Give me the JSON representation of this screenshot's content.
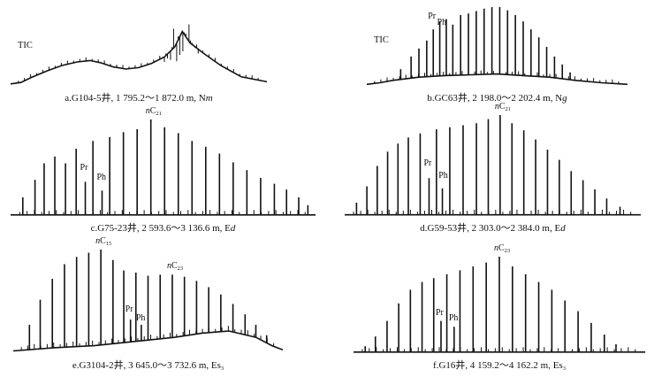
{
  "chart_data": [
    {
      "type": "line",
      "panel_id": "a",
      "tic_label": "TIC",
      "caption": {
        "prefix": "a.G104-5井, 1 795.2～1 872.0 m, N",
        "italic": "m",
        "sub": ""
      },
      "envelope": [
        [
          0,
          0.04
        ],
        [
          0.04,
          0.06
        ],
        [
          0.08,
          0.13
        ],
        [
          0.14,
          0.22
        ],
        [
          0.2,
          0.3
        ],
        [
          0.26,
          0.35
        ],
        [
          0.31,
          0.37
        ],
        [
          0.35,
          0.34
        ],
        [
          0.4,
          0.28
        ],
        [
          0.45,
          0.25
        ],
        [
          0.5,
          0.27
        ],
        [
          0.55,
          0.33
        ],
        [
          0.6,
          0.42
        ],
        [
          0.64,
          0.56
        ],
        [
          0.67,
          0.78
        ],
        [
          0.7,
          0.62
        ],
        [
          0.75,
          0.48
        ],
        [
          0.82,
          0.3
        ],
        [
          0.9,
          0.14
        ],
        [
          1,
          0.07
        ]
      ],
      "peaks": [],
      "noise": [
        0.35,
        0.4,
        0.38,
        0.82,
        0.36,
        0.45,
        0.5,
        0.75,
        0.88,
        0.62,
        0.55,
        0.47
      ],
      "labels": []
    },
    {
      "type": "line",
      "panel_id": "b",
      "tic_label": "TIC",
      "caption": {
        "prefix": "b.GC63井, 2 198.0～2 202.4 m, N",
        "italic": "g",
        "sub": ""
      },
      "envelope": [
        [
          0,
          0.03
        ],
        [
          0.05,
          0.05
        ],
        [
          0.1,
          0.08
        ],
        [
          0.2,
          0.12
        ],
        [
          0.3,
          0.14
        ],
        [
          0.4,
          0.15
        ],
        [
          0.5,
          0.16
        ],
        [
          0.6,
          0.14
        ],
        [
          0.7,
          0.12
        ],
        [
          0.8,
          0.08
        ],
        [
          0.9,
          0.05
        ],
        [
          1,
          0.03
        ]
      ],
      "peaks": [
        [
          0.13,
          0.22
        ],
        [
          0.17,
          0.38
        ],
        [
          0.2,
          0.48
        ],
        [
          0.23,
          0.58
        ],
        [
          0.255,
          0.72
        ],
        [
          0.28,
          0.82
        ],
        [
          0.305,
          0.85
        ],
        [
          0.33,
          0.78
        ],
        [
          0.36,
          0.9
        ],
        [
          0.39,
          0.92
        ],
        [
          0.42,
          0.95
        ],
        [
          0.45,
          0.98
        ],
        [
          0.48,
          1.0
        ],
        [
          0.51,
          1.0
        ],
        [
          0.54,
          0.96
        ],
        [
          0.57,
          0.9
        ],
        [
          0.6,
          0.82
        ],
        [
          0.63,
          0.72
        ],
        [
          0.66,
          0.62
        ],
        [
          0.69,
          0.5
        ],
        [
          0.72,
          0.38
        ],
        [
          0.75,
          0.28
        ],
        [
          0.78,
          0.18
        ]
      ],
      "noise": [],
      "labels": [
        {
          "text": "Pr",
          "italic": "",
          "sub": "",
          "x": 0.255,
          "y": 0.88
        },
        {
          "text": "Ph",
          "italic": "",
          "sub": "",
          "x": 0.29,
          "y": 0.8
        }
      ]
    },
    {
      "type": "line",
      "panel_id": "c",
      "tic_label": "",
      "caption": {
        "prefix": "c.G75-23井, 2 593.6～3 136.6 m, E",
        "italic": "d",
        "sub": ""
      },
      "envelope": [
        [
          0,
          0.02
        ],
        [
          0.5,
          0.02
        ],
        [
          1,
          0.02
        ]
      ],
      "peaks": [
        [
          0.04,
          0.2
        ],
        [
          0.08,
          0.38
        ],
        [
          0.11,
          0.55
        ],
        [
          0.145,
          0.62
        ],
        [
          0.18,
          0.55
        ],
        [
          0.215,
          0.7
        ],
        [
          0.245,
          0.36
        ],
        [
          0.27,
          0.78
        ],
        [
          0.3,
          0.27
        ],
        [
          0.325,
          0.82
        ],
        [
          0.37,
          0.87
        ],
        [
          0.415,
          0.9
        ],
        [
          0.46,
          1.0
        ],
        [
          0.505,
          0.92
        ],
        [
          0.55,
          0.86
        ],
        [
          0.595,
          0.78
        ],
        [
          0.64,
          0.72
        ],
        [
          0.685,
          0.65
        ],
        [
          0.73,
          0.56
        ],
        [
          0.775,
          0.48
        ],
        [
          0.82,
          0.4
        ],
        [
          0.865,
          0.34
        ],
        [
          0.905,
          0.28
        ],
        [
          0.945,
          0.2
        ],
        [
          0.975,
          0.12
        ]
      ],
      "noise": [],
      "labels": [
        {
          "text": "Pr",
          "italic": "",
          "sub": "",
          "x": 0.245,
          "y": 0.5
        },
        {
          "text": "Ph",
          "italic": "",
          "sub": "",
          "x": 0.3,
          "y": 0.4
        },
        {
          "text": "C",
          "italic": "n",
          "sub": "21",
          "x": 0.46,
          "y": 1.08
        }
      ]
    },
    {
      "type": "line",
      "panel_id": "d",
      "tic_label": "",
      "caption": {
        "prefix": "d.G59-53井, 2 303.0～2 384.0 m, E",
        "italic": "d",
        "sub": ""
      },
      "envelope": [
        [
          0,
          0.02
        ],
        [
          0.5,
          0.02
        ],
        [
          1,
          0.02
        ]
      ],
      "peaks": [
        [
          0.04,
          0.14
        ],
        [
          0.075,
          0.3
        ],
        [
          0.11,
          0.5
        ],
        [
          0.145,
          0.64
        ],
        [
          0.18,
          0.72
        ],
        [
          0.215,
          0.78
        ],
        [
          0.255,
          0.82
        ],
        [
          0.285,
          0.38
        ],
        [
          0.31,
          0.86
        ],
        [
          0.33,
          0.28
        ],
        [
          0.355,
          0.88
        ],
        [
          0.4,
          0.9
        ],
        [
          0.445,
          0.92
        ],
        [
          0.485,
          0.96
        ],
        [
          0.525,
          1.0
        ],
        [
          0.565,
          0.92
        ],
        [
          0.605,
          0.85
        ],
        [
          0.645,
          0.76
        ],
        [
          0.685,
          0.66
        ],
        [
          0.725,
          0.56
        ],
        [
          0.765,
          0.45
        ],
        [
          0.805,
          0.36
        ],
        [
          0.845,
          0.27
        ],
        [
          0.885,
          0.18
        ],
        [
          0.93,
          0.1
        ]
      ],
      "noise": [],
      "labels": [
        {
          "text": "Pr",
          "italic": "",
          "sub": "",
          "x": 0.285,
          "y": 0.52
        },
        {
          "text": "Ph",
          "italic": "",
          "sub": "",
          "x": 0.335,
          "y": 0.4
        },
        {
          "text": "C",
          "italic": "n",
          "sub": "21",
          "x": 0.525,
          "y": 1.08
        }
      ]
    },
    {
      "type": "line",
      "panel_id": "e",
      "tic_label": "",
      "caption": {
        "prefix": "e.G3104-2井, 3 645.0～3 732.6 m, Es",
        "italic": "",
        "sub": "3"
      },
      "envelope": [
        [
          0,
          0.03
        ],
        [
          0.15,
          0.06
        ],
        [
          0.3,
          0.08
        ],
        [
          0.45,
          0.12
        ],
        [
          0.6,
          0.16
        ],
        [
          0.7,
          0.2
        ],
        [
          0.8,
          0.22
        ],
        [
          0.9,
          0.16
        ],
        [
          0.96,
          0.08
        ],
        [
          1,
          0.04
        ]
      ],
      "peaks": [
        [
          0.06,
          0.28
        ],
        [
          0.1,
          0.52
        ],
        [
          0.145,
          0.72
        ],
        [
          0.19,
          0.86
        ],
        [
          0.235,
          0.93
        ],
        [
          0.28,
          0.97
        ],
        [
          0.325,
          1.0
        ],
        [
          0.37,
          0.9
        ],
        [
          0.41,
          0.8
        ],
        [
          0.435,
          0.33
        ],
        [
          0.455,
          0.78
        ],
        [
          0.475,
          0.28
        ],
        [
          0.5,
          0.75
        ],
        [
          0.545,
          0.76
        ],
        [
          0.59,
          0.76
        ],
        [
          0.635,
          0.74
        ],
        [
          0.68,
          0.7
        ],
        [
          0.725,
          0.64
        ],
        [
          0.77,
          0.57
        ],
        [
          0.815,
          0.48
        ],
        [
          0.86,
          0.38
        ],
        [
          0.9,
          0.28
        ],
        [
          0.94,
          0.18
        ]
      ],
      "noise": [],
      "labels": [
        {
          "text": "C",
          "italic": "n",
          "sub": "15",
          "x": 0.325,
          "y": 1.08
        },
        {
          "text": "Pr",
          "italic": "",
          "sub": "",
          "x": 0.435,
          "y": 0.42
        },
        {
          "text": "Ph",
          "italic": "",
          "sub": "",
          "x": 0.475,
          "y": 0.34
        },
        {
          "text": "C",
          "italic": "n",
          "sub": "23",
          "x": 0.59,
          "y": 0.84
        }
      ]
    },
    {
      "type": "line",
      "panel_id": "f",
      "tic_label": "",
      "caption": {
        "prefix": "f.G16井, 4 159.2～4 162.2 m, Es",
        "italic": "",
        "sub": "3"
      },
      "envelope": [
        [
          0,
          0.02
        ],
        [
          0.5,
          0.02
        ],
        [
          1,
          0.02
        ]
      ],
      "peaks": [
        [
          0.04,
          0.08
        ],
        [
          0.075,
          0.18
        ],
        [
          0.115,
          0.34
        ],
        [
          0.155,
          0.52
        ],
        [
          0.195,
          0.66
        ],
        [
          0.235,
          0.74
        ],
        [
          0.275,
          0.78
        ],
        [
          0.3,
          0.34
        ],
        [
          0.32,
          0.82
        ],
        [
          0.345,
          0.28
        ],
        [
          0.365,
          0.86
        ],
        [
          0.41,
          0.9
        ],
        [
          0.455,
          0.94
        ],
        [
          0.5,
          1.0
        ],
        [
          0.545,
          0.9
        ],
        [
          0.59,
          0.82
        ],
        [
          0.635,
          0.74
        ],
        [
          0.68,
          0.66
        ],
        [
          0.725,
          0.55
        ],
        [
          0.77,
          0.44
        ],
        [
          0.815,
          0.32
        ],
        [
          0.86,
          0.2
        ],
        [
          0.9,
          0.1
        ]
      ],
      "noise": [],
      "labels": [
        {
          "text": "Pr",
          "italic": "",
          "sub": "",
          "x": 0.3,
          "y": 0.42
        },
        {
          "text": "Ph",
          "italic": "",
          "sub": "",
          "x": 0.345,
          "y": 0.36
        },
        {
          "text": "C",
          "italic": "n",
          "sub": "23",
          "x": 0.5,
          "y": 1.08
        }
      ]
    }
  ]
}
